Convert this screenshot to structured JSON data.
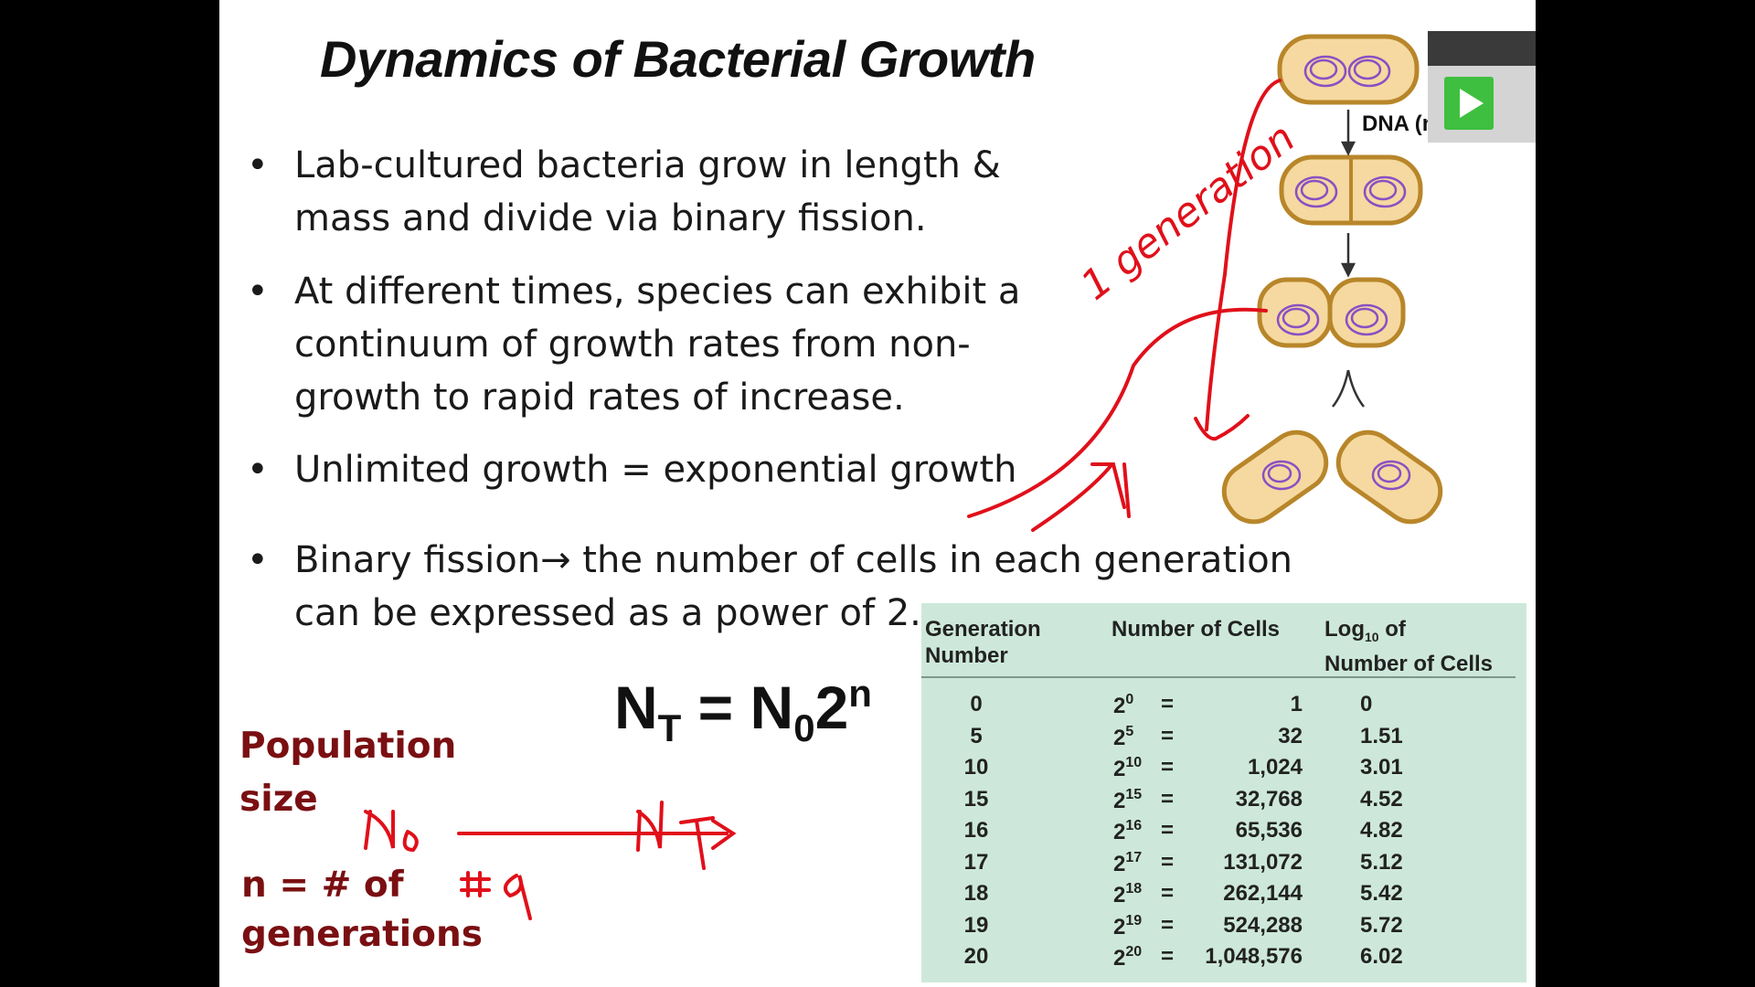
{
  "title": "Dynamics of Bacterial Growth",
  "bullets": [
    "Lab-cultured bacteria grow in length &\nmass and divide via binary fission.",
    "At different times, species can exhibit a\ncontinuum of growth rates from non-\ngrowth to rapid rates of increase.",
    "Unlimited growth = exponential growth",
    "Binary fission→ the number of cells in each generation\ncan be expressed as a power of 2."
  ],
  "bullet_symbol": "•",
  "labels": {
    "population": "Population\nsize",
    "generations": "n = # of\ngenerations",
    "dna": "DNA (n"
  },
  "formula": {
    "lhs": "N",
    "lhs_sub": "T",
    "eq": " = ",
    "rhs": "N",
    "rhs_sub": "0",
    "base": "2",
    "exp": "n"
  },
  "table": {
    "headers": {
      "generation": "Generation\nNumber",
      "cells": "Number of Cells",
      "log_pre": "Log",
      "log_sub": "10",
      "log_post": " of\nNumber of Cells"
    },
    "power_base": "2",
    "equals": "=",
    "rows": [
      {
        "gen": "0",
        "exp": "0",
        "cells": "1",
        "log": "0"
      },
      {
        "gen": "5",
        "exp": "5",
        "cells": "32",
        "log": "1.51"
      },
      {
        "gen": "10",
        "exp": "10",
        "cells": "1,024",
        "log": "3.01"
      },
      {
        "gen": "15",
        "exp": "15",
        "cells": "32,768",
        "log": "4.52"
      },
      {
        "gen": "16",
        "exp": "16",
        "cells": "65,536",
        "log": "4.82"
      },
      {
        "gen": "17",
        "exp": "17",
        "cells": "131,072",
        "log": "5.12"
      },
      {
        "gen": "18",
        "exp": "18",
        "cells": "262,144",
        "log": "5.42"
      },
      {
        "gen": "19",
        "exp": "19",
        "cells": "524,288",
        "log": "5.72"
      },
      {
        "gen": "20",
        "exp": "20",
        "cells": "1,048,576",
        "log": "6.02"
      }
    ]
  },
  "handwriting": {
    "generation_note": "1 generation",
    "n0": "N",
    "n0_sub": "o",
    "nt": "N",
    "nt_sub": "T",
    "ng": "#g"
  },
  "colors": {
    "maroon": "#7a0f12",
    "ink": "#e0101a",
    "table_bg": "#cde8da",
    "cell_fill": "#f5d9a0",
    "cell_outline": "#b8862a",
    "dna": "#8a4fc4"
  },
  "icons": {
    "play": "play-icon"
  }
}
